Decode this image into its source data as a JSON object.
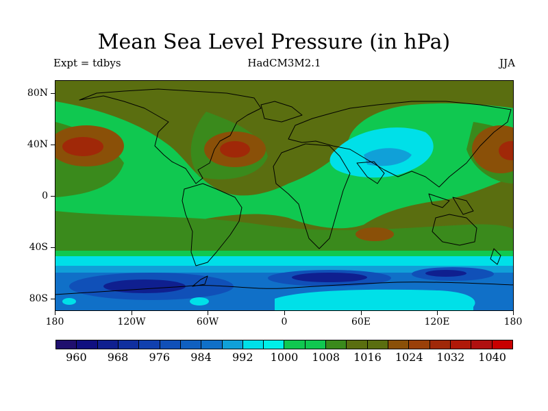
{
  "header": {
    "title": "Mean Sea Level Pressure (in hPa)",
    "left_label": "Expt = tdbys",
    "center_label": "HadCM3M2.1",
    "right_label": "JJA"
  },
  "map": {
    "lat_labels": [
      "80N",
      "40N",
      "0",
      "40S",
      "80S"
    ],
    "lon_labels": [
      "180",
      "120W",
      "60W",
      "0",
      "60E",
      "120E",
      "180"
    ]
  },
  "colorbar": {
    "labels": [
      "960",
      "968",
      "976",
      "984",
      "992",
      "1000",
      "1008",
      "1016",
      "1024",
      "1032",
      "1040"
    ],
    "scale": [
      956,
      1044,
      4
    ],
    "colors": [
      "#1f0f6e",
      "#0f0f80",
      "#0f1f8f",
      "#0f2f9f",
      "#1040af",
      "#1050b8",
      "#1060c0",
      "#1070c8",
      "#10a0d8",
      "#00e0e8",
      "#00f0e8",
      "#10c850",
      "#10c850",
      "#3a8a1c",
      "#5a6e10",
      "#5a6e10",
      "#8a5008",
      "#9a4008",
      "#a02808",
      "#b01808",
      "#b01010",
      "#c80000"
    ],
    "named": {
      "low_navy": "#0f1f8f",
      "deep_blue": "#1050b8",
      "blue": "#1070c8",
      "cyan": "#00e0e8",
      "green": "#10c850",
      "mid_green": "#3a8a1c",
      "olive": "#5a6e10",
      "brown": "#8a5008",
      "red_brown": "#a02808"
    }
  }
}
